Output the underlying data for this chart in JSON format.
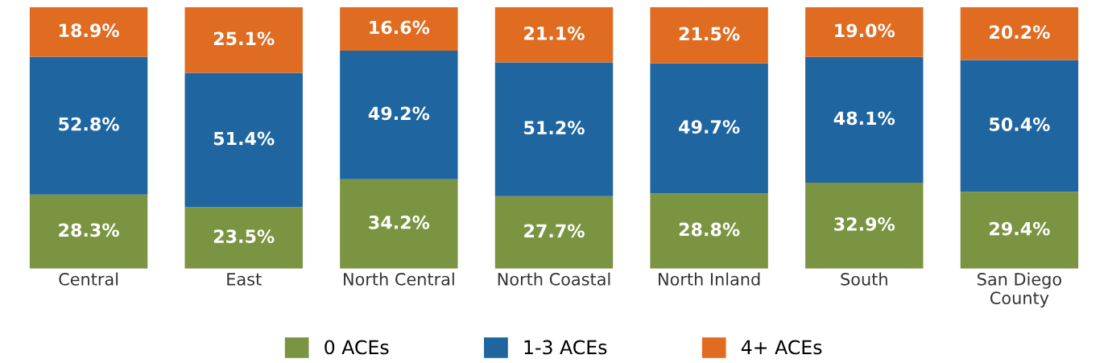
{
  "chart_data": {
    "type": "bar",
    "stacked": true,
    "categories": [
      "Central",
      "East",
      "North Central",
      "North Coastal",
      "North Inland",
      "South",
      "San Diego\nCounty"
    ],
    "series": [
      {
        "name": "0 ACEs",
        "color": "#7a9441",
        "values": [
          28.3,
          23.5,
          34.2,
          27.7,
          28.8,
          32.9,
          29.4
        ],
        "value_labels": [
          "28.3%",
          "23.5%",
          "34.2%",
          "27.7%",
          "28.8%",
          "32.9%",
          "29.4%"
        ]
      },
      {
        "name": "1-3 ACEs",
        "color": "#1f65a0",
        "values": [
          52.8,
          51.4,
          49.2,
          51.2,
          49.7,
          48.1,
          50.4
        ],
        "value_labels": [
          "52.8%",
          "51.4%",
          "49.2%",
          "51.2%",
          "49.7%",
          "48.1%",
          "50.4%"
        ]
      },
      {
        "name": "4+ ACEs",
        "color": "#e06c22",
        "values": [
          18.9,
          25.1,
          16.6,
          21.1,
          21.5,
          19.0,
          20.2
        ],
        "value_labels": [
          "18.9%",
          "25.1%",
          "16.6%",
          "21.1%",
          "21.5%",
          "19.0%",
          "20.2%"
        ]
      }
    ],
    "legend": "bottom"
  }
}
